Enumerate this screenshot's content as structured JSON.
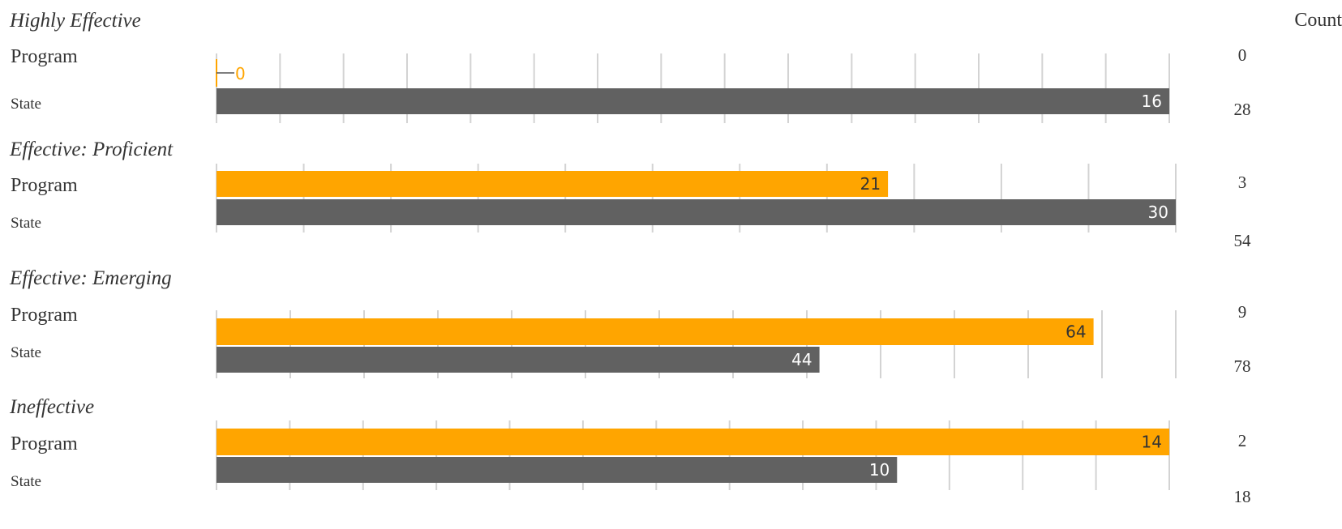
{
  "chart_data": {
    "type": "bar",
    "orientation": "horizontal",
    "count_header": "Count",
    "colors": {
      "Program": "#FFA500",
      "State": "#616161",
      "grid": "#d3d3d3"
    },
    "panels": [
      {
        "category": "Highly Effective",
        "rows": [
          {
            "label": "Program",
            "value": 0,
            "count": "0"
          },
          {
            "label": "State",
            "value": 16,
            "count": "28"
          }
        ],
        "xlim": [
          0,
          16
        ]
      },
      {
        "category": "Effective: Proficient",
        "rows": [
          {
            "label": "Program",
            "value": 21,
            "count": "3"
          },
          {
            "label": "State",
            "value": 30,
            "count": "54"
          }
        ],
        "xlim": [
          0,
          30
        ]
      },
      {
        "category": "Effective: Emerging",
        "rows": [
          {
            "label": "Program",
            "value": 64,
            "count": "9"
          },
          {
            "label": "State",
            "value": 44,
            "count": "78"
          }
        ],
        "xlim": [
          0,
          70
        ]
      },
      {
        "category": "Ineffective",
        "rows": [
          {
            "label": "Program",
            "value": 14,
            "count": "2"
          },
          {
            "label": "State",
            "value": 10,
            "count": "18"
          }
        ],
        "xlim": [
          0,
          14
        ]
      }
    ]
  }
}
